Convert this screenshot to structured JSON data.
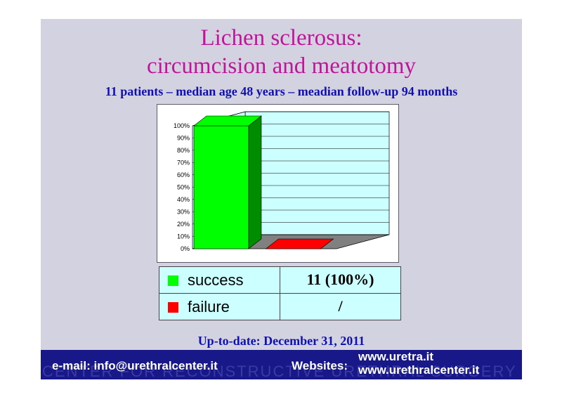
{
  "slide": {
    "title_line1": "Lichen sclerosus:",
    "title_line2": "circumcision and meatotomy",
    "subtitle": "11 patients – median age 48 years – meadian follow-up 94 months",
    "update_note": "Up-to-date: December 31, 2011"
  },
  "colors": {
    "title": "#c0159a",
    "subtitle": "#1010b0",
    "success": "#00ff00",
    "failure": "#ff0000",
    "footer_bg": "#181888",
    "table_bg": "#ccffff",
    "plot_bg": "#ccffff"
  },
  "chart_data": {
    "type": "bar",
    "categories": [
      "success",
      "failure"
    ],
    "values": [
      100,
      0
    ],
    "colors": [
      "#00ff00",
      "#ff0000"
    ],
    "ylim": [
      0,
      100
    ],
    "yticks": [
      "0%",
      "10%",
      "20%",
      "30%",
      "40%",
      "50%",
      "60%",
      "70%",
      "80%",
      "90%",
      "100%"
    ],
    "yunit": "%",
    "grid": true,
    "style": "3d",
    "title": "",
    "xlabel": "",
    "ylabel": ""
  },
  "legend_table": {
    "rows": [
      {
        "label": "success",
        "value": "11 (100%)",
        "color": "#00ff00"
      },
      {
        "label": "failure",
        "value": "/",
        "color": "#ff0000"
      }
    ]
  },
  "footer": {
    "email": "e-mail: info@urethralcenter.it",
    "websites_label": "Websites:",
    "site1": "www.uretra.it",
    "site2": "www.urethralcenter.it",
    "watermark": "CENTER FOR RECONSTRUCTIVE URETHRAL SURGERY"
  }
}
